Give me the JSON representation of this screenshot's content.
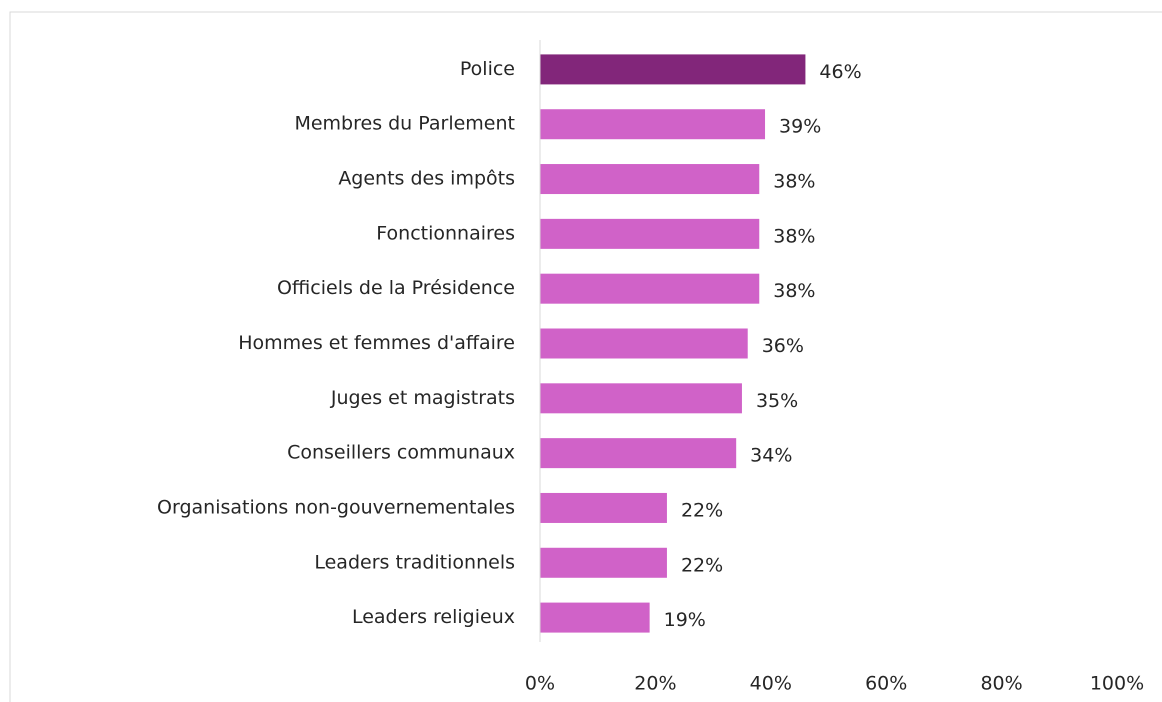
{
  "chart_data": {
    "type": "bar",
    "orientation": "horizontal",
    "categories": [
      "Police",
      "Membres du Parlement",
      "Agents des impôts",
      "Fonctionnaires",
      "Officiels de la Présidence",
      "Hommes et femmes d'affaire",
      "Juges et magistrats",
      "Conseillers communaux",
      "Organisations non-gouvernementales",
      "Leaders traditionnels",
      "Leaders religieux"
    ],
    "values": [
      46,
      39,
      38,
      38,
      38,
      36,
      35,
      34,
      22,
      22,
      19
    ],
    "value_labels": [
      "46%",
      "39%",
      "38%",
      "38%",
      "38%",
      "36%",
      "35%",
      "34%",
      "22%",
      "22%",
      "19%"
    ],
    "colors": [
      "#82267a",
      "#d062c8",
      "#d062c8",
      "#d062c8",
      "#d062c8",
      "#d062c8",
      "#d062c8",
      "#d062c8",
      "#d062c8",
      "#d062c8",
      "#d062c8"
    ],
    "xlim": [
      0,
      100
    ],
    "xticks": [
      {
        "value": 0,
        "label": "0%"
      },
      {
        "value": 20,
        "label": "20%"
      },
      {
        "value": 40,
        "label": "40%"
      },
      {
        "value": 60,
        "label": "60%"
      },
      {
        "value": 80,
        "label": "80%"
      },
      {
        "value": 100,
        "label": "100%"
      }
    ],
    "grid": false
  }
}
